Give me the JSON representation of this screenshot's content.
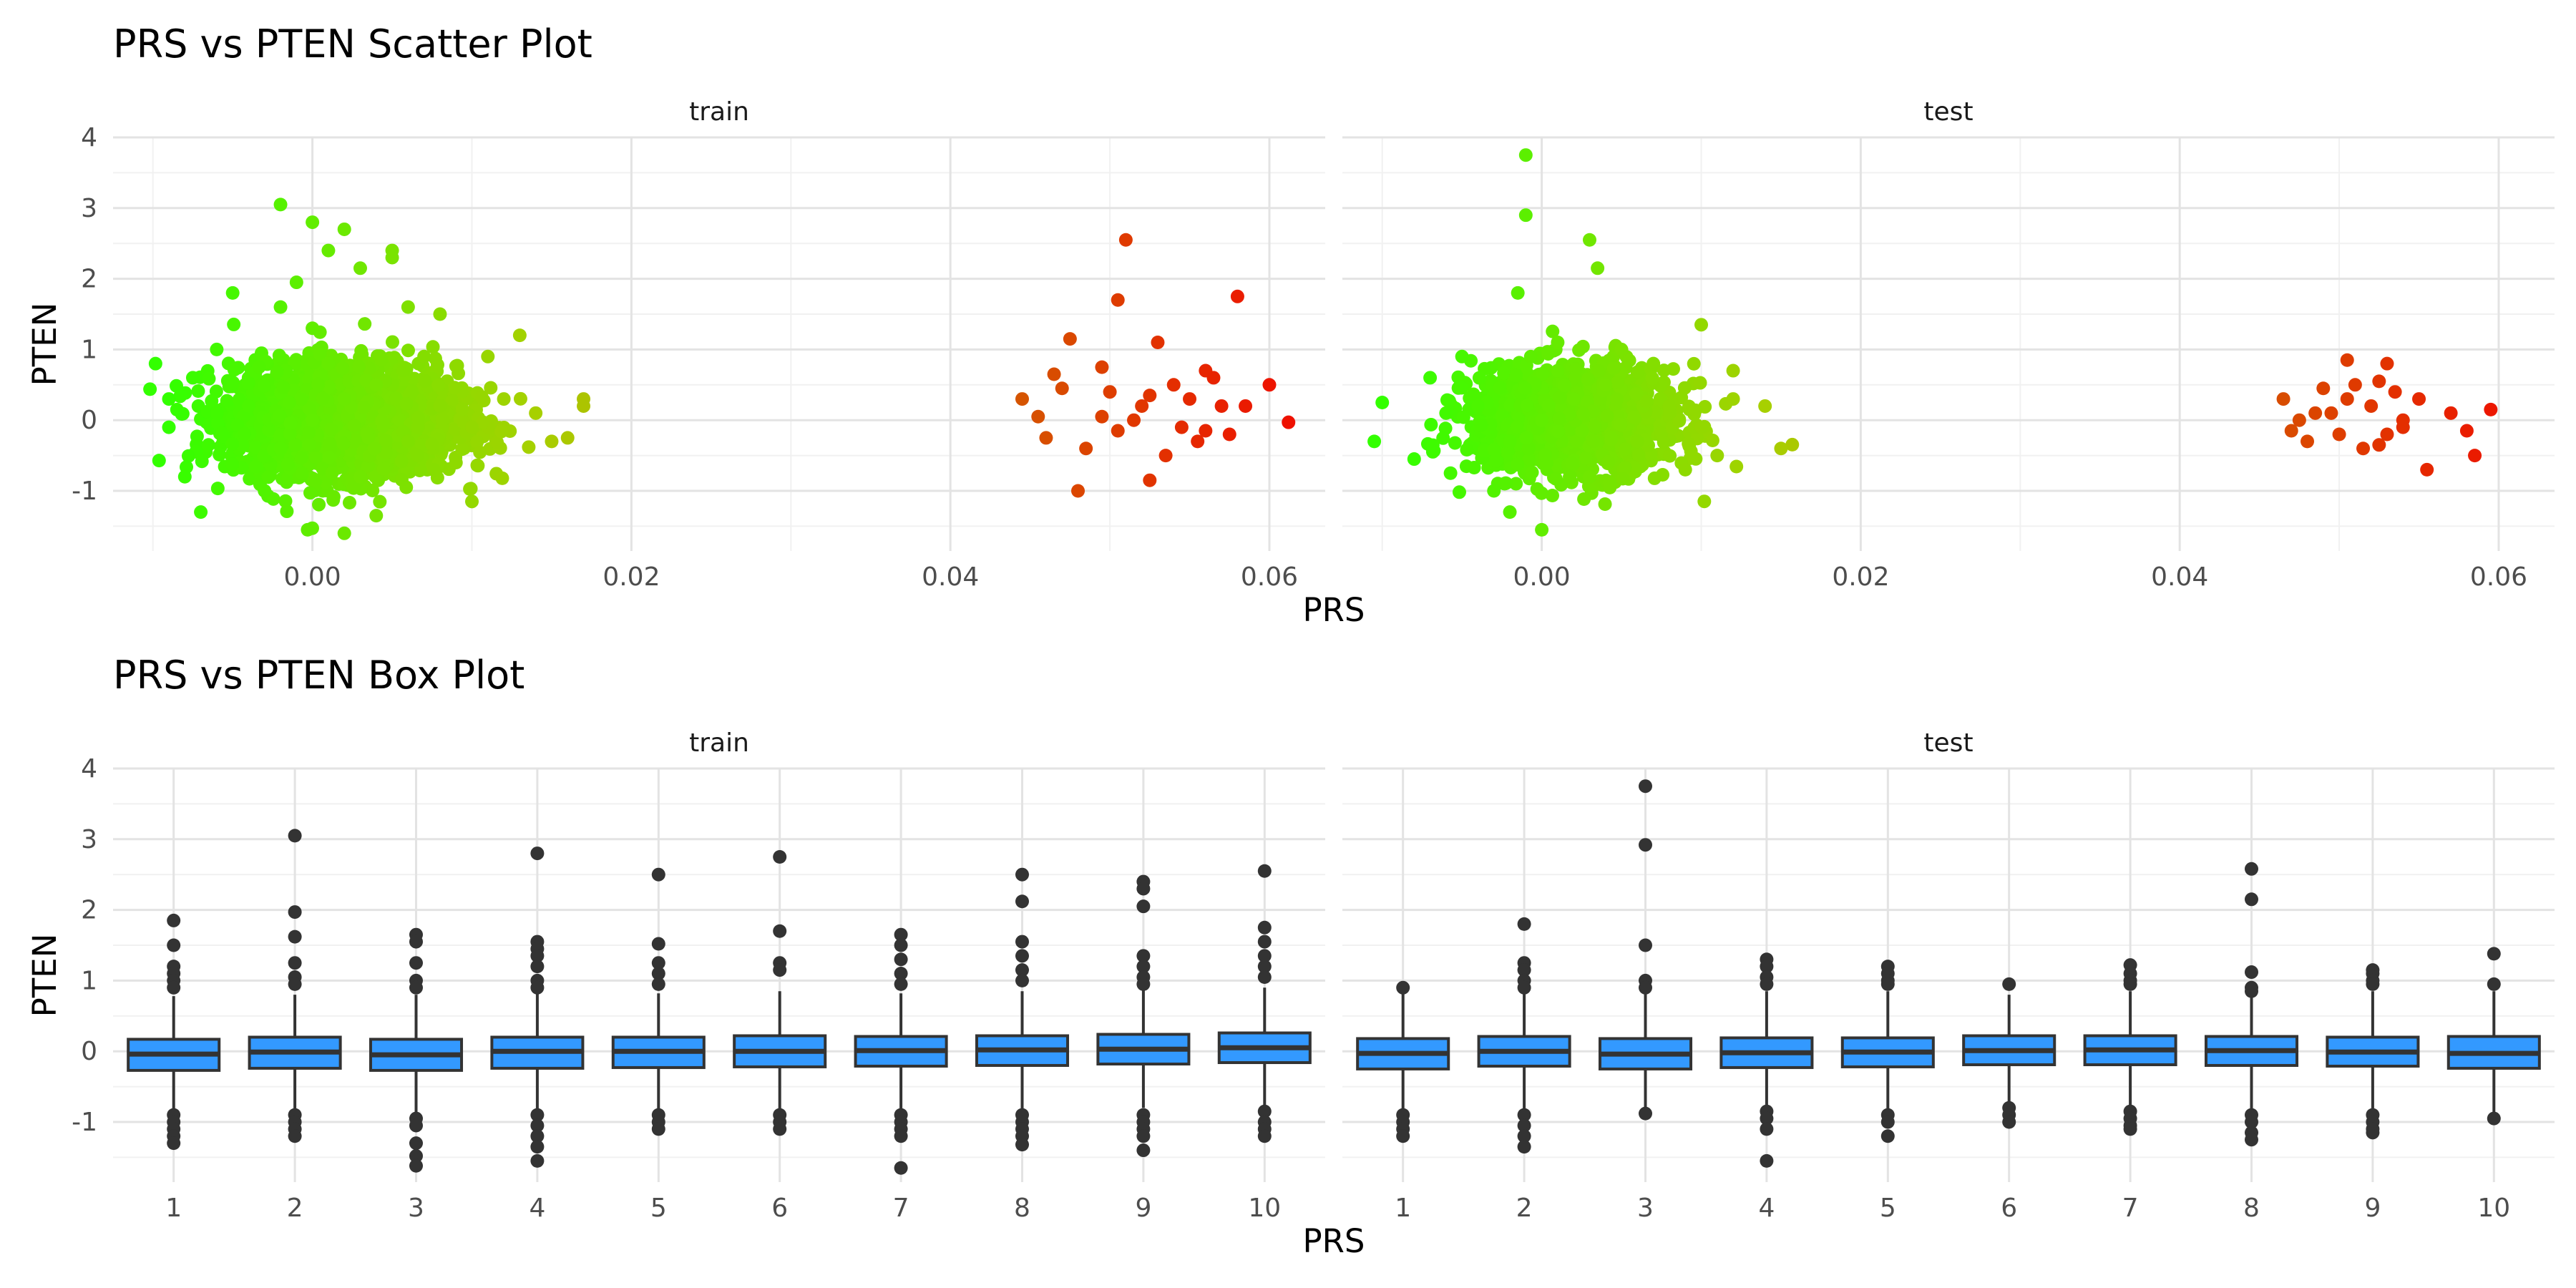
{
  "chart_data": [
    {
      "type": "scatter",
      "title": "PRS vs PTEN Scatter Plot",
      "xlabel": "PRS",
      "ylabel": "PTEN",
      "xlim": [
        -0.0125,
        0.0635
      ],
      "ylim": [
        -1.85,
        4.0
      ],
      "x_ticks": [
        0.0,
        0.02,
        0.04,
        0.06
      ],
      "x_tick_labels": [
        "0.00",
        "0.02",
        "0.04",
        "0.06"
      ],
      "y_ticks": [
        -1,
        0,
        1,
        2,
        3,
        4
      ],
      "y_tick_labels": [
        "-1",
        "0",
        "1",
        "2",
        "3",
        "4"
      ],
      "grid": true,
      "color_scale": {
        "low": "#33ff00",
        "mid": "#a8d000",
        "high": "#ee1100"
      },
      "facets": [
        {
          "name": "train",
          "points": [
            [
              0.0,
              0.0
            ],
            [
              0.002,
              0.3
            ],
            [
              -0.002,
              -0.4
            ],
            [
              0.004,
              0.5
            ],
            [
              -0.004,
              0.2
            ],
            [
              0.006,
              -0.3
            ],
            [
              0.001,
              0.8
            ],
            [
              0.003,
              -0.8
            ],
            [
              -0.006,
              0.1
            ],
            [
              0.008,
              0.2
            ],
            [
              0.01,
              -0.1
            ],
            [
              0.012,
              0.3
            ],
            [
              0.014,
              0.1
            ],
            [
              0.017,
              0.3
            ],
            [
              0.017,
              0.2
            ],
            [
              0.013,
              1.2
            ],
            [
              0.011,
              0.9
            ],
            [
              -0.009,
              0.3
            ],
            [
              -0.009,
              -0.1
            ],
            [
              -0.008,
              -0.8
            ],
            [
              -0.007,
              -1.3
            ],
            [
              -0.0075,
              0.6
            ],
            [
              -0.006,
              1.0
            ],
            [
              -0.005,
              1.8
            ],
            [
              -0.002,
              1.6
            ],
            [
              -0.002,
              3.05
            ],
            [
              0.0,
              2.8
            ],
            [
              0.002,
              2.7
            ],
            [
              0.001,
              2.4
            ],
            [
              0.003,
              2.15
            ],
            [
              0.005,
              2.4
            ],
            [
              0.005,
              2.3
            ],
            [
              -0.001,
              1.95
            ],
            [
              0.002,
              -1.6
            ],
            [
              -0.0003,
              -1.55
            ],
            [
              0.004,
              -1.35
            ],
            [
              0.01,
              -1.15
            ],
            [
              0.008,
              1.5
            ],
            [
              0.006,
              1.6
            ],
            [
              0.015,
              -0.3
            ],
            [
              0.016,
              -0.25
            ],
            [
              0.007,
              0.9
            ],
            [
              -0.003,
              -1.0
            ],
            [
              0.009,
              -0.6
            ],
            [
              0.0,
              1.3
            ],
            [
              0.0465,
              0.65
            ],
            [
              0.0475,
              1.15
            ],
            [
              0.0445,
              0.3
            ],
            [
              0.046,
              -0.25
            ],
            [
              0.048,
              -1.0
            ],
            [
              0.0495,
              0.75
            ],
            [
              0.05,
              0.4
            ],
            [
              0.051,
              2.55
            ],
            [
              0.0505,
              1.7
            ],
            [
              0.052,
              0.2
            ],
            [
              0.053,
              1.1
            ],
            [
              0.0525,
              -0.85
            ],
            [
              0.054,
              0.5
            ],
            [
              0.055,
              0.3
            ],
            [
              0.0555,
              -0.3
            ],
            [
              0.056,
              0.7
            ],
            [
              0.057,
              0.2
            ],
            [
              0.0565,
              0.6
            ],
            [
              0.058,
              1.75
            ],
            [
              0.0585,
              0.2
            ],
            [
              0.0575,
              -0.2
            ],
            [
              0.06,
              0.5
            ],
            [
              0.0612,
              -0.03
            ],
            [
              0.0535,
              -0.5
            ],
            [
              0.0515,
              0.0
            ],
            [
              0.0485,
              -0.4
            ],
            [
              0.0495,
              0.05
            ],
            [
              0.0505,
              -0.15
            ],
            [
              0.0525,
              0.35
            ],
            [
              0.0545,
              -0.1
            ],
            [
              0.0455,
              0.05
            ],
            [
              0.047,
              0.45
            ],
            [
              0.056,
              -0.15
            ]
          ]
        },
        {
          "name": "test",
          "points": [
            [
              0.0,
              0.0
            ],
            [
              0.002,
              0.3
            ],
            [
              -0.002,
              -0.3
            ],
            [
              0.004,
              0.5
            ],
            [
              -0.004,
              0.2
            ],
            [
              0.006,
              -0.3
            ],
            [
              0.001,
              0.7
            ],
            [
              0.003,
              -0.8
            ],
            [
              -0.006,
              0.1
            ],
            [
              0.008,
              0.2
            ],
            [
              0.01,
              -0.1
            ],
            [
              0.012,
              0.3
            ],
            [
              0.014,
              0.2
            ],
            [
              0.015,
              -0.4
            ],
            [
              0.01,
              1.35
            ],
            [
              -0.01,
              0.25
            ],
            [
              -0.0105,
              -0.3
            ],
            [
              -0.008,
              -0.55
            ],
            [
              -0.007,
              0.6
            ],
            [
              -0.001,
              3.75
            ],
            [
              -0.001,
              2.9
            ],
            [
              0.003,
              2.55
            ],
            [
              0.0035,
              2.15
            ],
            [
              -0.0015,
              1.8
            ],
            [
              0.0,
              -1.55
            ],
            [
              -0.002,
              -1.3
            ],
            [
              0.001,
              1.1
            ],
            [
              0.005,
              1.0
            ],
            [
              -0.003,
              -1.0
            ],
            [
              0.007,
              0.8
            ],
            [
              0.009,
              -0.7
            ],
            [
              0.012,
              0.7
            ],
            [
              0.011,
              -0.5
            ],
            [
              -0.005,
              0.9
            ],
            [
              0.0465,
              0.3
            ],
            [
              0.047,
              -0.15
            ],
            [
              0.0475,
              0.0
            ],
            [
              0.048,
              -0.3
            ],
            [
              0.049,
              0.45
            ],
            [
              0.0495,
              0.1
            ],
            [
              0.05,
              -0.2
            ],
            [
              0.0505,
              0.85
            ],
            [
              0.0505,
              0.3
            ],
            [
              0.051,
              0.5
            ],
            [
              0.052,
              0.2
            ],
            [
              0.0525,
              -0.35
            ],
            [
              0.053,
              0.8
            ],
            [
              0.0535,
              0.4
            ],
            [
              0.054,
              -0.1
            ],
            [
              0.055,
              0.3
            ],
            [
              0.0555,
              -0.7
            ],
            [
              0.057,
              0.1
            ],
            [
              0.058,
              -0.15
            ],
            [
              0.0585,
              -0.5
            ],
            [
              0.0595,
              0.15
            ],
            [
              0.0485,
              0.1
            ],
            [
              0.0515,
              -0.4
            ],
            [
              0.0525,
              0.55
            ],
            [
              0.053,
              -0.2
            ],
            [
              0.054,
              0.0
            ]
          ]
        }
      ]
    },
    {
      "type": "box",
      "title": "PRS vs PTEN Box Plot",
      "xlabel": "PRS",
      "ylabel": "PTEN",
      "ylim": [
        -1.85,
        4.0
      ],
      "y_ticks": [
        -1,
        0,
        1,
        2,
        3,
        4
      ],
      "y_tick_labels": [
        "-1",
        "0",
        "1",
        "2",
        "3",
        "4"
      ],
      "categories": [
        "1",
        "2",
        "3",
        "4",
        "5",
        "6",
        "7",
        "8",
        "9",
        "10"
      ],
      "grid": true,
      "fill_color": "#3399ff",
      "facets": [
        {
          "name": "train",
          "boxes": [
            {
              "q1": -0.27,
              "median": -0.04,
              "q3": 0.17,
              "whisker_low": -0.85,
              "whisker_high": 0.78,
              "outliers": [
                1.85,
                1.5,
                1.2,
                1.1,
                1.0,
                0.9,
                -0.9,
                -1.0,
                -1.1,
                -1.2,
                -1.3
              ]
            },
            {
              "q1": -0.24,
              "median": -0.01,
              "q3": 0.2,
              "whisker_low": -0.85,
              "whisker_high": 0.8,
              "outliers": [
                3.05,
                1.97,
                1.62,
                1.25,
                1.05,
                0.95,
                -0.9,
                -1.0,
                -1.1,
                -1.2
              ]
            },
            {
              "q1": -0.27,
              "median": -0.05,
              "q3": 0.17,
              "whisker_low": -0.88,
              "whisker_high": 0.8,
              "outliers": [
                1.65,
                1.55,
                1.25,
                1.0,
                0.9,
                -0.95,
                -1.05,
                -1.3,
                -1.48,
                -1.62
              ]
            },
            {
              "q1": -0.24,
              "median": 0.0,
              "q3": 0.2,
              "whisker_low": -0.85,
              "whisker_high": 0.85,
              "outliers": [
                2.8,
                1.55,
                1.45,
                1.35,
                1.2,
                1.0,
                0.9,
                -0.9,
                -1.05,
                -1.2,
                -1.35,
                -1.55
              ]
            },
            {
              "q1": -0.23,
              "median": 0.0,
              "q3": 0.2,
              "whisker_low": -0.85,
              "whisker_high": 0.82,
              "outliers": [
                2.5,
                1.52,
                1.25,
                1.1,
                0.95,
                -0.9,
                -1.0,
                -1.1
              ]
            },
            {
              "q1": -0.22,
              "median": 0.0,
              "q3": 0.22,
              "whisker_low": -0.85,
              "whisker_high": 0.85,
              "outliers": [
                2.75,
                1.7,
                1.25,
                1.15,
                -0.9,
                -1.0,
                -1.1
              ]
            },
            {
              "q1": -0.21,
              "median": 0.01,
              "q3": 0.21,
              "whisker_low": -0.82,
              "whisker_high": 0.82,
              "outliers": [
                1.65,
                1.5,
                1.3,
                1.1,
                0.95,
                -0.9,
                -1.0,
                -1.1,
                -1.2,
                -1.65
              ]
            },
            {
              "q1": -0.2,
              "median": 0.02,
              "q3": 0.22,
              "whisker_low": -0.82,
              "whisker_high": 0.85,
              "outliers": [
                2.5,
                2.12,
                1.55,
                1.35,
                1.15,
                1.0,
                -0.9,
                -1.0,
                -1.1,
                -1.2,
                -1.32
              ]
            },
            {
              "q1": -0.18,
              "median": 0.03,
              "q3": 0.24,
              "whisker_low": -0.8,
              "whisker_high": 0.88,
              "outliers": [
                2.4,
                2.3,
                2.05,
                1.35,
                1.2,
                1.05,
                0.95,
                -0.9,
                -1.0,
                -1.1,
                -1.2,
                -1.4
              ]
            },
            {
              "q1": -0.16,
              "median": 0.05,
              "q3": 0.26,
              "whisker_low": -0.78,
              "whisker_high": 0.9,
              "outliers": [
                2.55,
                1.75,
                1.55,
                1.35,
                1.2,
                1.05,
                -0.85,
                -1.0,
                -1.1,
                -1.2
              ]
            }
          ]
        },
        {
          "name": "test",
          "boxes": [
            {
              "q1": -0.25,
              "median": -0.03,
              "q3": 0.18,
              "whisker_low": -0.85,
              "whisker_high": 0.82,
              "outliers": [
                0.9,
                -0.9,
                -1.0,
                -1.1,
                -1.2
              ]
            },
            {
              "q1": -0.21,
              "median": 0.0,
              "q3": 0.21,
              "whisker_low": -0.82,
              "whisker_high": 0.85,
              "outliers": [
                1.8,
                1.25,
                1.15,
                1.0,
                0.9,
                -0.9,
                -1.05,
                -1.2,
                -1.35
              ]
            },
            {
              "q1": -0.25,
              "median": -0.04,
              "q3": 0.18,
              "whisker_low": -0.85,
              "whisker_high": 0.85,
              "outliers": [
                3.75,
                2.92,
                1.5,
                1.0,
                0.9,
                -0.88
              ]
            },
            {
              "q1": -0.23,
              "median": -0.02,
              "q3": 0.19,
              "whisker_low": -0.82,
              "whisker_high": 0.85,
              "outliers": [
                1.3,
                1.2,
                1.05,
                0.95,
                -0.85,
                -0.95,
                -1.1,
                -1.55
              ]
            },
            {
              "q1": -0.22,
              "median": -0.01,
              "q3": 0.19,
              "whisker_low": -0.82,
              "whisker_high": 0.85,
              "outliers": [
                1.2,
                1.1,
                1.0,
                0.95,
                -0.9,
                -1.0,
                -1.2
              ]
            },
            {
              "q1": -0.19,
              "median": 0.01,
              "q3": 0.22,
              "whisker_low": -0.75,
              "whisker_high": 0.8,
              "outliers": [
                0.95,
                -0.8,
                -0.9,
                -1.0
              ]
            },
            {
              "q1": -0.19,
              "median": 0.02,
              "q3": 0.22,
              "whisker_low": -0.8,
              "whisker_high": 0.85,
              "outliers": [
                1.22,
                1.1,
                1.0,
                0.95,
                -0.85,
                -0.95,
                -1.05,
                -1.1
              ]
            },
            {
              "q1": -0.2,
              "median": 0.01,
              "q3": 0.21,
              "whisker_low": -0.82,
              "whisker_high": 0.82,
              "outliers": [
                2.58,
                2.15,
                1.12,
                0.9,
                0.85,
                -0.9,
                -1.0,
                -1.15,
                -1.25
              ]
            },
            {
              "q1": -0.21,
              "median": -0.01,
              "q3": 0.2,
              "whisker_low": -0.82,
              "whisker_high": 0.85,
              "outliers": [
                1.15,
                1.1,
                1.0,
                0.95,
                -0.9,
                -1.0,
                -1.1,
                -1.15
              ]
            },
            {
              "q1": -0.24,
              "median": -0.03,
              "q3": 0.21,
              "whisker_low": -0.9,
              "whisker_high": 0.85,
              "outliers": [
                1.38,
                0.95,
                -0.95
              ]
            }
          ]
        }
      ]
    }
  ]
}
